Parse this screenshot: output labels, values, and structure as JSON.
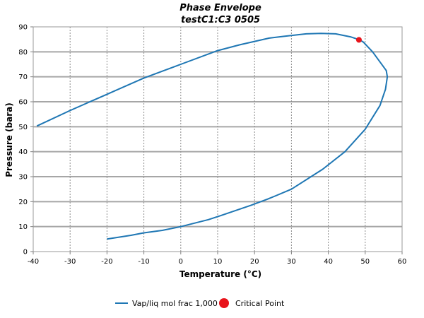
{
  "chart_data": {
    "type": "line",
    "title": "Phase Envelope",
    "subtitle": "testC1:C3 0505",
    "xlabel": "Temperature (°C)",
    "ylabel": "Pressure (bara)",
    "xlim": [
      -40,
      60
    ],
    "ylim": [
      0,
      90
    ],
    "x_ticks": [
      -40,
      -30,
      -20,
      -10,
      0,
      10,
      20,
      30,
      40,
      50,
      60
    ],
    "y_ticks": [
      0,
      10,
      20,
      30,
      40,
      50,
      60,
      70,
      80,
      90
    ],
    "grid": true,
    "legend_position": "bottom",
    "series": [
      {
        "name": "Vap/liq mol frac 1,000",
        "color": "#1f77b4",
        "points": [
          [
            -39,
            50.3
          ],
          [
            -30,
            56.5
          ],
          [
            -20,
            63.0
          ],
          [
            -10,
            69.5
          ],
          [
            0,
            75.0
          ],
          [
            10,
            80.5
          ],
          [
            16,
            82.8
          ],
          [
            24,
            85.5
          ],
          [
            28,
            86.2
          ],
          [
            34,
            87.2
          ],
          [
            38,
            87.4
          ],
          [
            42,
            87.2
          ],
          [
            46,
            86.0
          ],
          [
            48.5,
            84.8
          ],
          [
            49.5,
            83.9
          ],
          [
            52,
            80.0
          ],
          [
            55.7,
            72.5
          ],
          [
            56,
            70.0
          ],
          [
            55.5,
            65.0
          ],
          [
            54,
            58.5
          ],
          [
            50,
            49.0
          ],
          [
            44.5,
            40.0
          ],
          [
            38.5,
            33.0
          ],
          [
            30,
            25.0
          ],
          [
            26,
            22.5
          ],
          [
            23.5,
            21.0
          ],
          [
            19,
            18.5
          ],
          [
            11,
            14.5
          ],
          [
            7.5,
            12.8
          ],
          [
            0,
            10.0
          ],
          [
            -5,
            8.5
          ],
          [
            -10,
            7.5
          ],
          [
            -13.5,
            6.5
          ],
          [
            -20,
            5.0
          ]
        ]
      },
      {
        "name": "Critical Point",
        "color": "#e8141b",
        "points": [
          [
            48.3,
            84.8
          ]
        ]
      }
    ]
  }
}
